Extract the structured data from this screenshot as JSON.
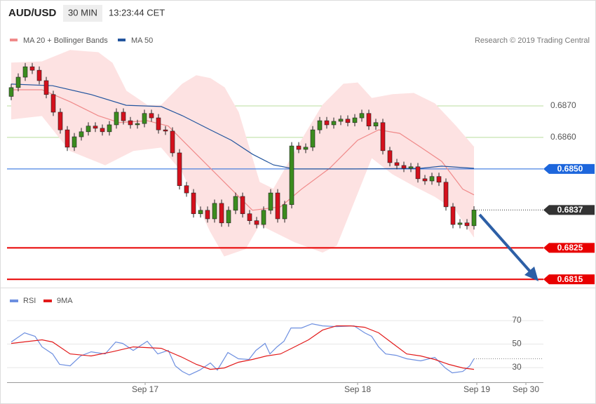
{
  "chart_data": [
    {
      "type": "candlestick",
      "title": "AUD/USD",
      "timeframe": "30 MIN",
      "time": "13:23:44 CET",
      "credit": "Research © 2019 Trading Central",
      "open": [
        0.6873,
        0.68758,
        0.68791,
        0.68824,
        0.68813,
        0.6878,
        0.68736,
        0.6868,
        0.68624,
        0.68569,
        0.68602,
        0.68618,
        0.68636,
        0.68629,
        0.68618,
        0.6864,
        0.6868,
        0.68653,
        0.6864,
        0.68644,
        0.68676,
        0.68662,
        0.68624,
        0.6862,
        0.68551,
        0.68447,
        0.68424,
        0.68358,
        0.68369,
        0.68342,
        0.68391,
        0.68329,
        0.68369,
        0.68413,
        0.68358,
        0.68336,
        0.68324,
        0.68369,
        0.68424,
        0.68342,
        0.68387,
        0.68573,
        0.68562,
        0.68569,
        0.68624,
        0.68653,
        0.6864,
        0.68651,
        0.68658,
        0.68647,
        0.68662,
        0.68676,
        0.68636,
        0.68647,
        0.68558,
        0.6852,
        0.68511,
        0.68502,
        0.68507,
        0.68469,
        0.68462,
        0.68476,
        0.68458,
        0.6838,
        0.68324,
        0.68329,
        0.6832
      ],
      "high": [
        0.6877,
        0.68803,
        0.68836,
        0.68836,
        0.68825,
        0.68792,
        0.68748,
        0.68692,
        0.68636,
        0.68614,
        0.6863,
        0.68648,
        0.68648,
        0.68641,
        0.68652,
        0.68692,
        0.68692,
        0.68665,
        0.68656,
        0.68688,
        0.68688,
        0.68674,
        0.68636,
        0.68632,
        0.68563,
        0.68459,
        0.68436,
        0.68381,
        0.68381,
        0.68403,
        0.68403,
        0.68381,
        0.68425,
        0.68425,
        0.6837,
        0.68348,
        0.68381,
        0.68436,
        0.68436,
        0.68399,
        0.68585,
        0.68585,
        0.68581,
        0.68636,
        0.68665,
        0.68665,
        0.68663,
        0.6867,
        0.6867,
        0.68674,
        0.68688,
        0.68688,
        0.68659,
        0.68659,
        0.6857,
        0.68532,
        0.68523,
        0.68519,
        0.68519,
        0.68481,
        0.68488,
        0.68488,
        0.6847,
        0.68392,
        0.68341,
        0.68341,
        0.68382
      ],
      "low": [
        0.68718,
        0.68746,
        0.68779,
        0.68801,
        0.68768,
        0.68724,
        0.68668,
        0.68612,
        0.68557,
        0.68557,
        0.6859,
        0.68606,
        0.68617,
        0.68606,
        0.68606,
        0.68628,
        0.68641,
        0.68628,
        0.68628,
        0.68632,
        0.6865,
        0.68612,
        0.68608,
        0.68539,
        0.68435,
        0.68412,
        0.68346,
        0.68346,
        0.6833,
        0.6833,
        0.68317,
        0.68317,
        0.68357,
        0.68346,
        0.68324,
        0.68312,
        0.68312,
        0.68357,
        0.6833,
        0.6833,
        0.68375,
        0.6855,
        0.6855,
        0.68557,
        0.68612,
        0.68628,
        0.68628,
        0.68639,
        0.68635,
        0.68635,
        0.6865,
        0.68624,
        0.68624,
        0.68546,
        0.68508,
        0.68499,
        0.6849,
        0.6849,
        0.68457,
        0.6845,
        0.6845,
        0.68446,
        0.68368,
        0.68312,
        0.68312,
        0.68308,
        0.68308
      ],
      "close": [
        0.68758,
        0.68791,
        0.68824,
        0.68813,
        0.6878,
        0.68736,
        0.6868,
        0.68624,
        0.68569,
        0.68602,
        0.68618,
        0.68636,
        0.68629,
        0.68618,
        0.6864,
        0.6868,
        0.68653,
        0.6864,
        0.68644,
        0.68676,
        0.68662,
        0.68624,
        0.6862,
        0.68551,
        0.68447,
        0.68424,
        0.68358,
        0.68369,
        0.68342,
        0.68391,
        0.68329,
        0.68369,
        0.68413,
        0.68358,
        0.68336,
        0.68324,
        0.68369,
        0.68424,
        0.68342,
        0.68387,
        0.68573,
        0.68562,
        0.68569,
        0.68624,
        0.68653,
        0.6864,
        0.68651,
        0.68658,
        0.68647,
        0.68662,
        0.68676,
        0.68636,
        0.68647,
        0.68558,
        0.6852,
        0.68511,
        0.68502,
        0.68507,
        0.68469,
        0.68462,
        0.68476,
        0.68458,
        0.6838,
        0.68324,
        0.68329,
        0.6832,
        0.6837
      ],
      "up_color": "#3b8c1e",
      "down_color": "#d4101c",
      "series": [
        {
          "name": "MA 20 + Bollinger Bands",
          "color": "#f08a8a",
          "band_color": "#fde2e2",
          "x": [
            0,
            4.4,
            8.4,
            12.4,
            15.4,
            19.4,
            22.4,
            26.4,
            30.4,
            34.4,
            38.4,
            41.4,
            45.4,
            49.4,
            52.4,
            55.4,
            58.4,
            61.4,
            64.4,
            66
          ],
          "values": [
            0.68751,
            0.68751,
            0.68713,
            0.68669,
            0.68647,
            0.68653,
            0.68636,
            0.68547,
            0.68458,
            0.68369,
            0.6838,
            0.68436,
            0.68502,
            0.68591,
            0.68624,
            0.68613,
            0.68569,
            0.68524,
            0.68436,
            0.68418
          ],
          "upper": {
            "x": [
              0,
              4.4,
              8.4,
              12.4,
              14.4,
              16.4,
              19.4,
              21.4,
              24.4,
              26.4,
              28.4,
              30.4,
              32.4,
              35.4,
              37.4,
              41.4,
              44.4,
              47.4,
              49.4,
              51.4,
              54.4,
              57.4,
              60.4,
              63.4,
              66
            ],
            "values": [
              0.68836,
              0.6884,
              0.68876,
              0.68869,
              0.68836,
              0.68747,
              0.68702,
              0.68702,
              0.68769,
              0.68796,
              0.68787,
              0.68758,
              0.6868,
              0.68458,
              0.68436,
              0.68591,
              0.68702,
              0.68769,
              0.68773,
              0.68724,
              0.68736,
              0.6874,
              0.68707,
              0.68636,
              0.68569
            ]
          },
          "lower": {
            "x": [
              0,
              4.4,
              6.4,
              8.4,
              13.4,
              17.4,
              21.4,
              24.4,
              28.4,
              30.4,
              33.4,
              35.4,
              37.4,
              40.4,
              44.4,
              46.4,
              48.4,
              51.4,
              54.4,
              57.4,
              60.4,
              63.4,
              66
            ],
            "values": [
              0.68658,
              0.68669,
              0.68613,
              0.68558,
              0.68513,
              0.68558,
              0.68569,
              0.68491,
              0.68302,
              0.68224,
              0.68247,
              0.68324,
              0.68302,
              0.68269,
              0.68236,
              0.68258,
              0.68369,
              0.68536,
              0.68484,
              0.68447,
              0.68413,
              0.68369,
              0.68284
            ]
          }
        },
        {
          "name": "MA 50",
          "color": "#23559e",
          "x": [
            0,
            5.9,
            11.4,
            16.4,
            21.4,
            24.4,
            28.4,
            31.4,
            34.4,
            37.4,
            40.4,
            48.4,
            58.4,
            61.4,
            66
          ],
          "values": [
            0.68769,
            0.68764,
            0.68736,
            0.68702,
            0.68698,
            0.68669,
            0.68624,
            0.68591,
            0.68547,
            0.68513,
            0.685,
            0.685,
            0.68502,
            0.68509,
            0.68502
          ]
        }
      ],
      "xlim": [
        -0.6,
        75.9
      ],
      "ylim": [
        0.68124,
        0.6888
      ],
      "yticks": [
        {
          "value": 0.687,
          "label": "0.6870"
        },
        {
          "value": 0.686,
          "label": "0.6860"
        }
      ],
      "grid_color": "#b9dc9e",
      "levels": [
        {
          "value": 0.685,
          "label": "0.6850",
          "color": "#1d66dc",
          "line": "solid"
        },
        {
          "value": 0.6837,
          "color": "#333333",
          "line": "dotted"
        },
        {
          "value": 0.6825,
          "color": "#e80000",
          "line": "solid"
        },
        {
          "value": 0.6815,
          "color": "#e80000",
          "line": "solid"
        }
      ]
    },
    {
      "type": "line",
      "series": [
        {
          "name": "RSI",
          "color": "#6d8fe0",
          "x": [
            0,
            1.9,
            3.4,
            4.4,
            5.9,
            6.9,
            8.4,
            9.9,
            11.4,
            13.4,
            14.9,
            15.9,
            17.4,
            19.4,
            20.9,
            22.4,
            23.4,
            24.4,
            25.4,
            26.9,
            28.4,
            29.4,
            30.9,
            32.4,
            33.9,
            34.9,
            36.2,
            36.9,
            37.9,
            38.9,
            39.9,
            41.4,
            42.9,
            44.4,
            46.4,
            48.9,
            50.4,
            51.4,
            52.4,
            53.4,
            54.9,
            56.4,
            58.4,
            60.4,
            61.9,
            62.9,
            64.4,
            65.4,
            66
          ],
          "values": [
            51.8,
            59.6,
            56.6,
            47.6,
            41.6,
            32.7,
            31.5,
            39.9,
            43.4,
            41.6,
            51.8,
            50.6,
            44.6,
            52.4,
            41.6,
            44.6,
            31.5,
            26.7,
            23.7,
            27.9,
            33.9,
            27.9,
            42.8,
            37.5,
            36.9,
            44.6,
            50.6,
            41.6,
            47.6,
            52.4,
            63.7,
            63.7,
            67.3,
            65.5,
            64.9,
            65.5,
            59.6,
            56.6,
            47.6,
            41.6,
            40.4,
            37.5,
            35.7,
            38.7,
            29.7,
            25.5,
            26.7,
            31.5,
            37.5
          ]
        },
        {
          "name": "9MA",
          "color": "#e21a1a",
          "x": [
            0,
            4.4,
            5.9,
            8.4,
            11.4,
            14.4,
            17.4,
            21.4,
            24.4,
            26.4,
            28.4,
            30.4,
            32.4,
            34.4,
            36.4,
            38.4,
            40.4,
            42.4,
            44.4,
            46.4,
            48.4,
            50.4,
            52.4,
            54.4,
            56.4,
            58.4,
            60.4,
            62.4,
            64.4,
            66
          ],
          "values": [
            50.6,
            53.6,
            51.8,
            41.6,
            39.9,
            43.4,
            47.6,
            46.4,
            38.7,
            32.7,
            28.5,
            29.7,
            34.5,
            36.9,
            39.9,
            41.6,
            47.6,
            53.6,
            61.9,
            65.5,
            65.5,
            64.3,
            59.6,
            50.6,
            41.6,
            39.9,
            36.9,
            32.7,
            29.7,
            28.5
          ]
        }
      ],
      "xlim": [
        -0.6,
        75.9
      ],
      "ylim": [
        18.7,
        96.9
      ],
      "yticks": [
        30,
        50,
        70
      ],
      "xticks": [
        {
          "value": 19.1,
          "label": "Sep 17"
        },
        {
          "value": 49.4,
          "label": "Sep 18"
        },
        {
          "value": 66.4,
          "label": "Sep 19"
        },
        {
          "value": 73.4,
          "label": "Sep 30"
        }
      ]
    }
  ]
}
